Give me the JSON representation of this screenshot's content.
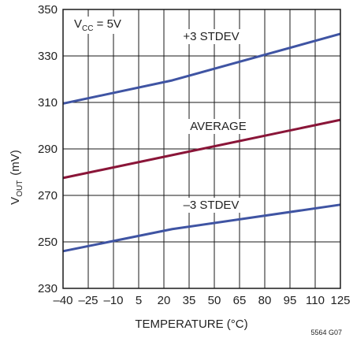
{
  "chart_data": {
    "type": "line",
    "xlabel": "TEMPERATURE (°C)",
    "ylabel_main": "V",
    "ylabel_sub": "OUT",
    "ylabel_unit": "(mV)",
    "xlim": [
      -40,
      125
    ],
    "ylim": [
      230,
      350
    ],
    "xticks": [
      -40,
      -25,
      -10,
      5,
      20,
      35,
      50,
      65,
      80,
      95,
      110,
      125
    ],
    "xtick_labels": [
      "–40",
      "–25",
      "–10",
      "5",
      "20",
      "35",
      "50",
      "65",
      "80",
      "95",
      "110",
      "125"
    ],
    "yticks": [
      230,
      250,
      270,
      290,
      310,
      330,
      350
    ],
    "ytick_labels": [
      "230",
      "250",
      "270",
      "290",
      "310",
      "330",
      "350"
    ],
    "grid": true,
    "series": [
      {
        "name": "+3 STDEV",
        "color": "#3f54a3",
        "x": [
          -40,
          25,
          125
        ],
        "y": [
          309.5,
          319.5,
          339.5
        ]
      },
      {
        "name": "AVERAGE",
        "color": "#8a1538",
        "x": [
          -40,
          125
        ],
        "y": [
          277.5,
          302.5
        ]
      },
      {
        "name": "–3 STDEV",
        "color": "#3f54a3",
        "x": [
          -40,
          25,
          125
        ],
        "y": [
          246,
          255.5,
          266
        ]
      }
    ],
    "condition_main": "V",
    "condition_sub": "CC",
    "condition_rest": " = 5V",
    "figure_code": "5564 G07"
  }
}
